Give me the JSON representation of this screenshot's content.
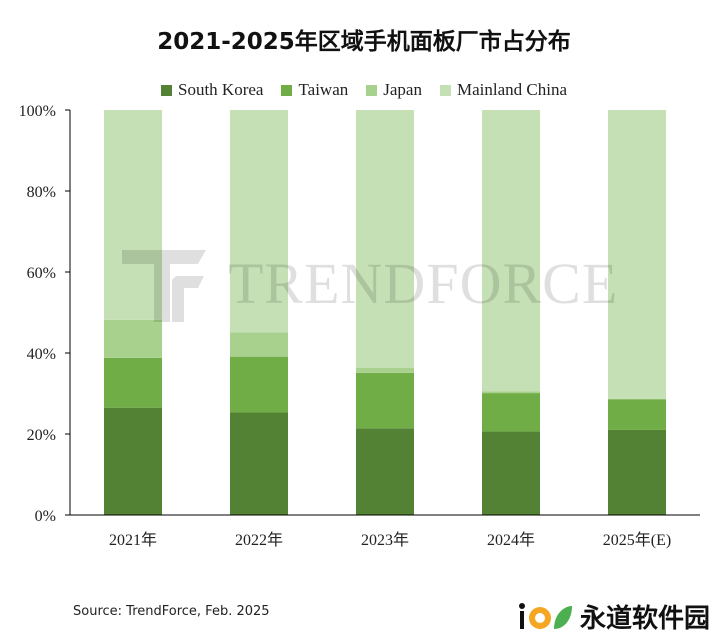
{
  "chart_data": {
    "type": "stacked-bar",
    "title": "2021-2025年区域手机面板厂市占分布",
    "categories": [
      "2021年",
      "2022年",
      "2023年",
      "2024年",
      "2025年(E)"
    ],
    "series": [
      {
        "name": "South Korea",
        "color": "#548235",
        "values": [
          26.5,
          25.3,
          21.4,
          20.6,
          21.0
        ]
      },
      {
        "name": "Taiwan",
        "color": "#70AD47",
        "values": [
          12.3,
          13.8,
          13.7,
          9.5,
          7.6
        ]
      },
      {
        "name": "Japan",
        "color": "#A9D18E",
        "values": [
          9.4,
          6.0,
          1.2,
          0.4,
          0.0
        ]
      },
      {
        "name": "Mainland China",
        "color": "#C5E0B4",
        "values": [
          51.8,
          54.9,
          63.7,
          69.5,
          71.4
        ]
      }
    ],
    "ylim": [
      0,
      100
    ],
    "yticks": [
      "0%",
      "20%",
      "40%",
      "60%",
      "80%",
      "100%"
    ],
    "xlabel": "",
    "ylabel": "",
    "legend": "top",
    "grid": false
  },
  "source": "Source: TrendForce, Feb. 2025",
  "watermark": "TRENDFORCE",
  "brand": {
    "name": "永道软件园"
  }
}
